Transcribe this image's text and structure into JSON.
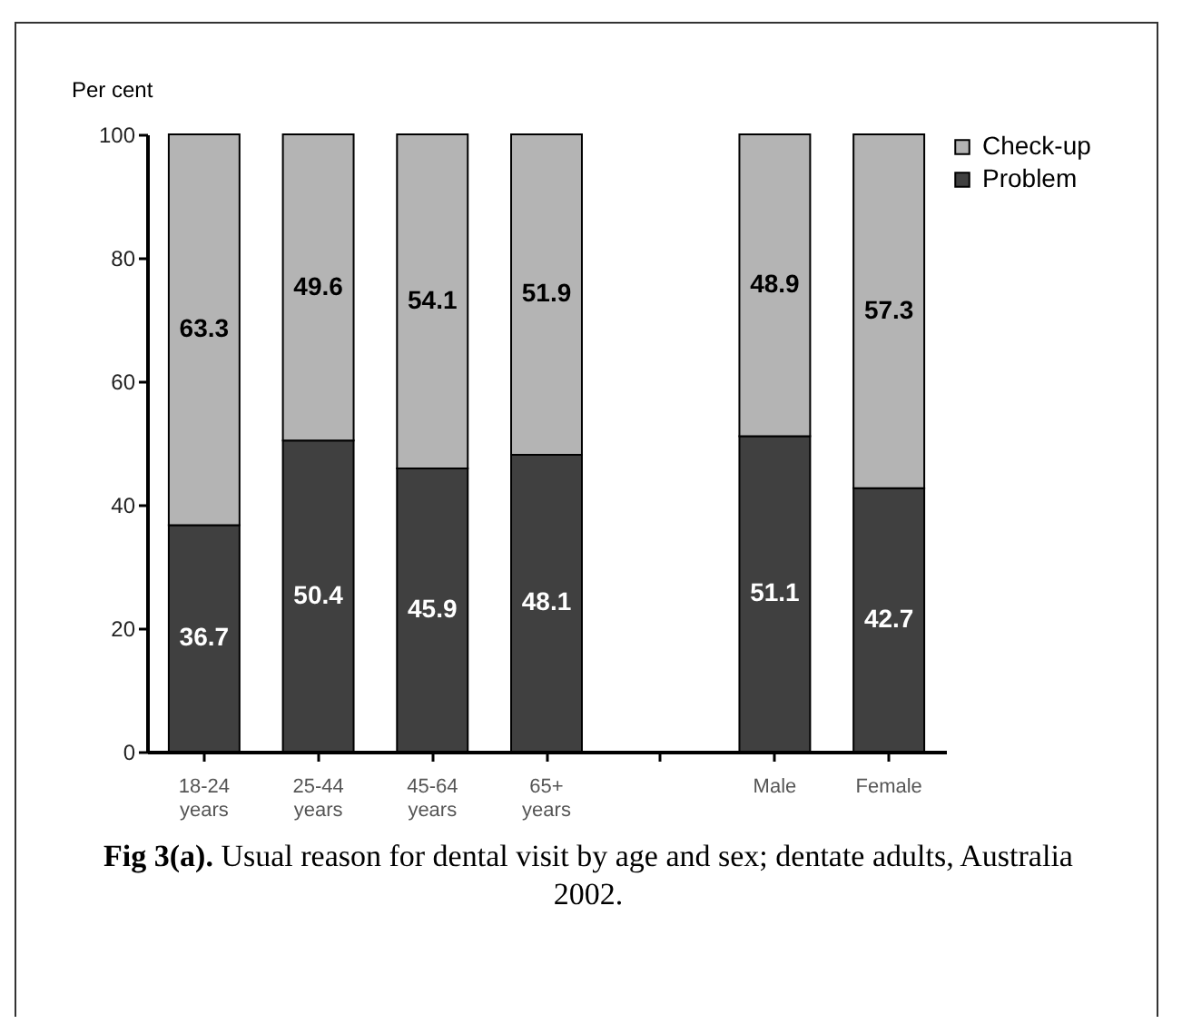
{
  "chart_data": {
    "type": "bar",
    "stacked": true,
    "ylabel": "Per cent",
    "categories": [
      "18-24 years",
      "25-44 years",
      "45-64 years",
      "65+ years",
      null,
      "Male",
      "Female"
    ],
    "series": [
      {
        "name": "Problem",
        "color": "#404040",
        "values": [
          36.7,
          50.4,
          45.9,
          48.1,
          null,
          51.1,
          42.7
        ]
      },
      {
        "name": "Check-up",
        "color": "#b4b4b4",
        "values": [
          63.3,
          49.6,
          54.1,
          51.9,
          null,
          48.9,
          57.3
        ]
      }
    ],
    "ylim": [
      0,
      100
    ],
    "yticks": [
      0,
      20,
      40,
      60,
      80,
      100
    ],
    "grid": false,
    "legend": "top right",
    "data_labels": true,
    "annotations": [
      "Fig 3(a). Usual reason for dental visit by age and sex; dentate adults, Australia 2002."
    ]
  }
}
